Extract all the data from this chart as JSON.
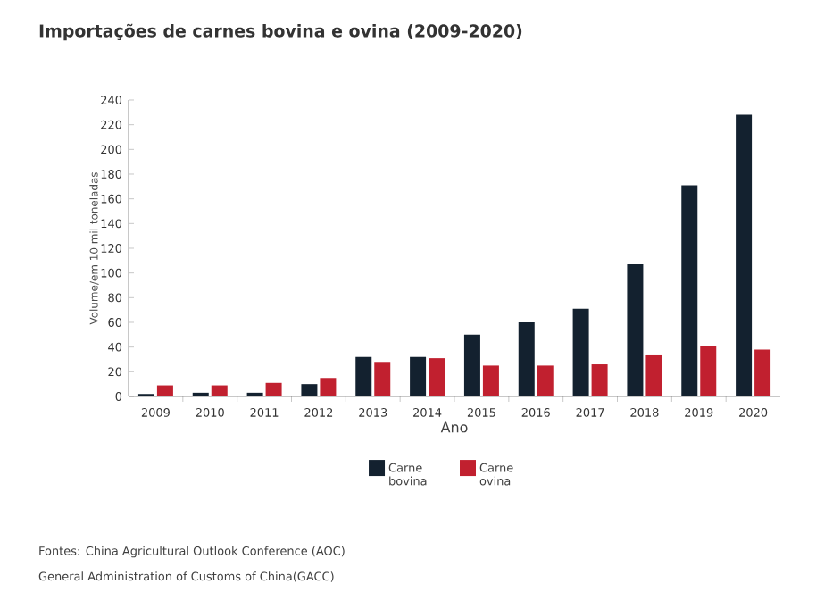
{
  "chart_data": {
    "type": "bar",
    "title": "Importações de carnes bovina e ovina (2009-2020)",
    "xlabel": "Ano",
    "ylabel": "Volume/em 10 mil toneladas",
    "categories": [
      "2009",
      "2010",
      "2011",
      "2012",
      "2013",
      "2014",
      "2015",
      "2016",
      "2017",
      "2018",
      "2019",
      "2020"
    ],
    "series": [
      {
        "name": "Carne bovina",
        "color": "#13212f",
        "values": [
          2,
          3,
          3,
          10,
          32,
          32,
          50,
          60,
          71,
          107,
          171,
          228
        ]
      },
      {
        "name": "Carne ovina",
        "color": "#c1202f",
        "values": [
          9,
          9,
          11,
          15,
          28,
          31,
          25,
          25,
          26,
          34,
          41,
          38
        ]
      }
    ],
    "ylim": [
      0,
      240
    ],
    "yticks": [
      0,
      20,
      40,
      60,
      80,
      100,
      120,
      140,
      160,
      180,
      200,
      220,
      240
    ],
    "grid": false,
    "legend": "bottom",
    "annotations": [
      "Fontes: China Agricultural Outlook Conference (AOC)",
      "General Administration of Customs of China(GACC)"
    ]
  }
}
